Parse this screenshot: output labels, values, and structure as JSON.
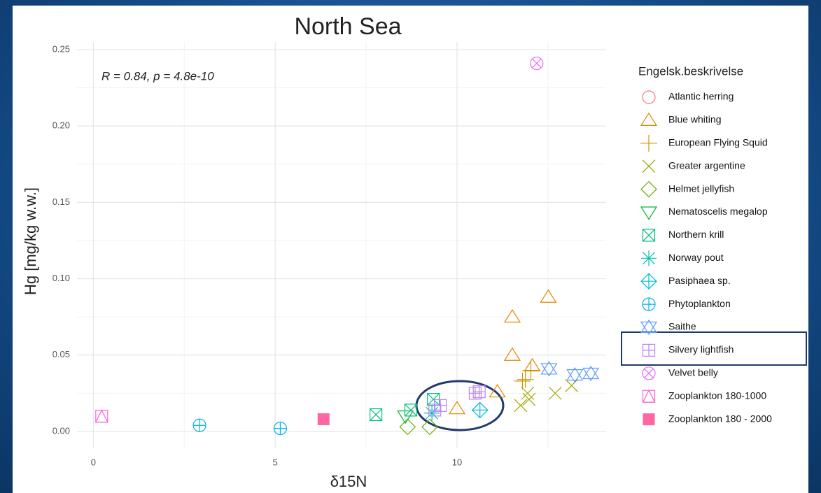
{
  "chart_data": {
    "type": "scatter",
    "title": "North Sea",
    "annotation": "R = 0.84, p = 4.8e-10",
    "xlabel": "δ15N",
    "ylabel": "Hg [mg/kg w.w.]",
    "legend_title": "Engelsk.beskrivelse",
    "xlim": [
      -0.45,
      14.1
    ],
    "ylim": [
      -0.011,
      0.255
    ],
    "xticks": [
      0,
      5,
      10
    ],
    "yticks": [
      {
        "value": 0,
        "label": "0.00"
      },
      {
        "value": 0.05,
        "label": "0.05"
      },
      {
        "value": 0.1,
        "label": "0.10"
      },
      {
        "value": 0.15,
        "label": "0.15"
      },
      {
        "value": 0.2,
        "label": "0.20"
      },
      {
        "value": 0.25,
        "label": "0.25"
      }
    ],
    "grid": true,
    "legend": "right",
    "series": [
      {
        "name": "Atlantic herring",
        "color": "#F8766D",
        "shape": "circle",
        "x": [],
        "values": []
      },
      {
        "name": "Blue whiting",
        "color": "#E58700",
        "shape": "triangle",
        "x": [
          11.52,
          12.51,
          11.52,
          11.11,
          10.0,
          12.07
        ],
        "values": [
          0.075,
          0.088,
          0.05,
          0.026,
          0.015,
          0.043
        ]
      },
      {
        "name": "European Flying Squid",
        "color": "#C99800",
        "shape": "plus",
        "x": [
          11.88,
          12.03,
          11.8
        ],
        "values": [
          0.034,
          0.04,
          0.033
        ]
      },
      {
        "name": "Greater argentine",
        "color": "#A3A500",
        "shape": "cross",
        "x": [
          11.75,
          11.94,
          12.7,
          13.15,
          11.98
        ],
        "values": [
          0.017,
          0.025,
          0.025,
          0.03,
          0.021
        ]
      },
      {
        "name": "Helmet jellyfish",
        "color": "#6BB100",
        "shape": "diamond",
        "x": [
          8.64,
          9.25
        ],
        "values": [
          0.003,
          0.003
        ]
      },
      {
        "name": "Nematoscelis megalop",
        "color": "#00BA38",
        "shape": "triangle-down",
        "x": [
          8.58
        ],
        "values": [
          0.01
        ]
      },
      {
        "name": "Northern krill",
        "color": "#00BF7D",
        "shape": "square-cross",
        "x": [
          7.77,
          8.73,
          9.35
        ],
        "values": [
          0.011,
          0.014,
          0.021
        ]
      },
      {
        "name": "Norway pout",
        "color": "#00C0AF",
        "shape": "asterisk",
        "x": [
          9.31
        ],
        "values": [
          0.012
        ]
      },
      {
        "name": "Pasiphaea sp.",
        "color": "#00BCD8",
        "shape": "diamond-plus",
        "x": [
          10.63
        ],
        "values": [
          0.014
        ]
      },
      {
        "name": "Phytoplankton",
        "color": "#00B0F6",
        "shape": "circle-plus",
        "x": [
          2.92,
          5.14
        ],
        "values": [
          0.004,
          0.002
        ]
      },
      {
        "name": "Saithe",
        "color": "#619CFF",
        "shape": "star",
        "x": [
          12.53,
          13.24,
          13.68
        ],
        "values": [
          0.041,
          0.037,
          0.038
        ]
      },
      {
        "name": "Silvery lightfish",
        "color": "#B983FF",
        "shape": "square-plus",
        "x": [
          10.5,
          9.54,
          9.39,
          10.61
        ],
        "values": [
          0.025,
          0.017,
          0.014,
          0.026
        ]
      },
      {
        "name": "Velvet belly",
        "color": "#E76BF3",
        "shape": "circle-cross",
        "x": [
          12.19
        ],
        "values": [
          0.241
        ]
      },
      {
        "name": "Zooplankton 180-1000",
        "color": "#FD61D1",
        "shape": "square-triangle",
        "x": [
          0.23
        ],
        "values": [
          0.01
        ]
      },
      {
        "name": "Zooplankton 180 - 2000",
        "color": "#FF67A4",
        "shape": "square-filled",
        "x": [
          6.33
        ],
        "values": [
          0.008
        ]
      }
    ]
  }
}
